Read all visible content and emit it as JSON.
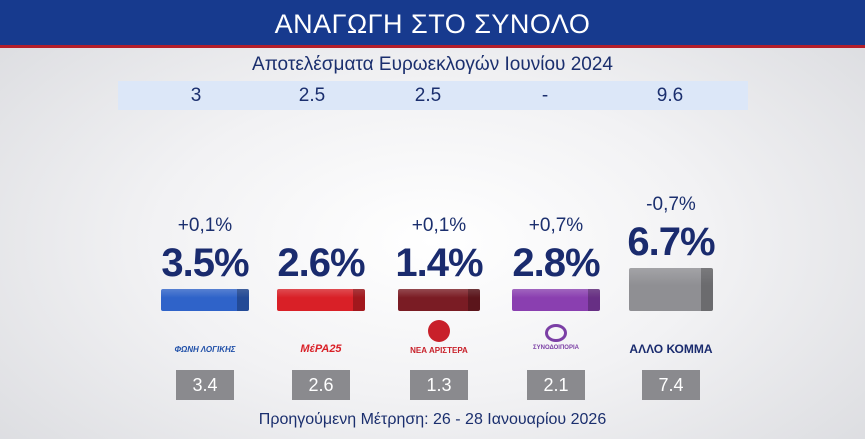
{
  "header": {
    "title": "ΑΝΑΓΩΓΗ ΣΤΟ ΣΥΝΟΛΟ"
  },
  "reference": {
    "title": "Αποτελέσματα Ευρωεκλογών Ιουνίου 2024",
    "values": [
      "3",
      "2.5",
      "2.5",
      "-",
      "9.6"
    ]
  },
  "footer": {
    "text": "Προηγούμενη Μέτρηση: 26 - 28 Ιανουαρίου 2026"
  },
  "colors": {
    "header_bg": "#173a8e",
    "accent_red": "#b41e2a",
    "text_navy": "#1a2b6e",
    "prev_box": "#8a8a8e"
  },
  "chart_data": {
    "type": "bar",
    "title": "ΑΝΑΓΩΓΗ ΣΤΟ ΣΥΝΟΛΟ",
    "categories": [
      "ΦΩΝΗ ΛΟΓΙΚΗΣ",
      "ΜέΡΑ25",
      "ΝΕΑ ΑΡΙΣΤΕΡΑ",
      "ΣΥΝΟΔΟΙΠΟΡΙΑ",
      "ΑΛΛΟ ΚΟΜΜΑ"
    ],
    "values": [
      3.5,
      2.6,
      1.4,
      2.8,
      6.7
    ],
    "value_labels": [
      "3.5%",
      "2.6%",
      "1.4%",
      "2.8%",
      "6.7%"
    ],
    "changes": [
      "+0,1%",
      "",
      "+0,1%",
      "+0,7%",
      "-0,7%"
    ],
    "previous": [
      "3.4",
      "2.6",
      "1.3",
      "2.1",
      "7.4"
    ],
    "bar_colors": [
      "#2f63c9",
      "#d92027",
      "#7a1c24",
      "#8a3fb0",
      "#8f8f93"
    ],
    "logo_labels": [
      "ΦΩΝΗ ΛΟΓΙΚΗΣ",
      "ΜέΡΑ25",
      "ΝΕΑ ΑΡΙΣΤΕΡΑ",
      "ΣΥΝΟΔΟΙΠΟΡΙΑ",
      "ΑΛΛΟ ΚΟΜΜΑ"
    ],
    "logo_colors": [
      "#1f4fa8",
      "#d92027",
      "#c8202a",
      "#7b3fa5",
      "#1a2b6e"
    ]
  }
}
